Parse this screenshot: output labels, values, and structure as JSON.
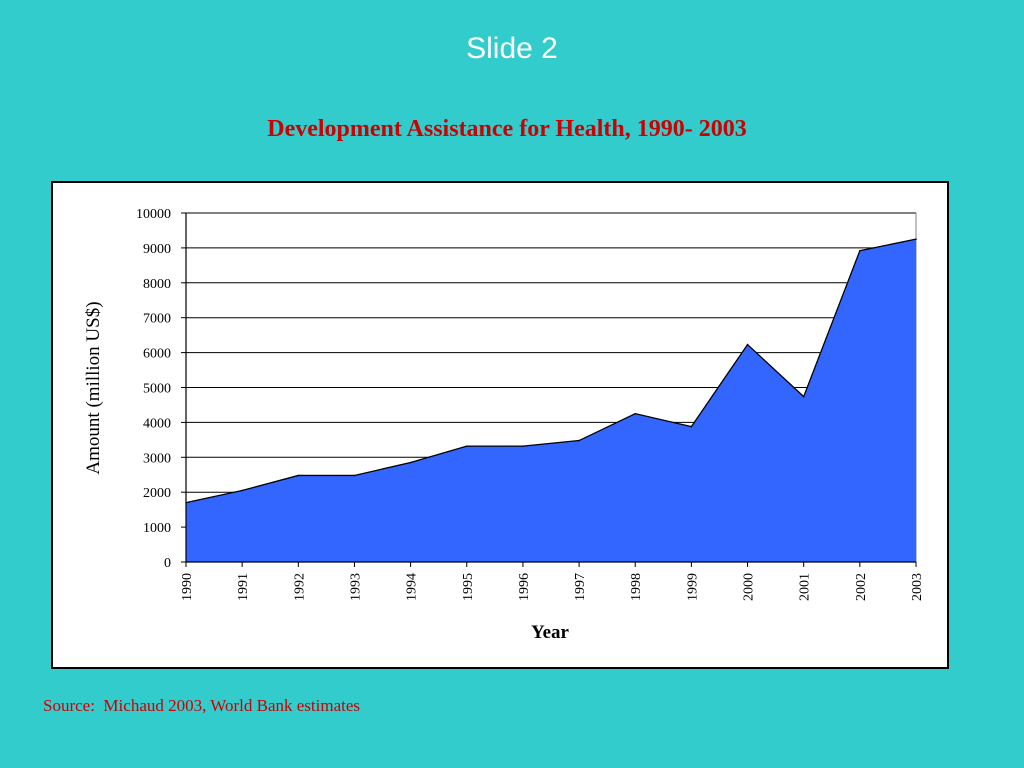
{
  "slide": {
    "title": "Slide 2",
    "source": "Source:  Michaud 2003, World Bank estimates"
  },
  "colors": {
    "background": "#33CCCC",
    "title_color": "#CC0000",
    "area_fill": "#3366FF",
    "area_stroke": "#000000"
  },
  "chart_data": {
    "type": "area",
    "title": "Development Assistance for Health, 1990- 2003",
    "xlabel": "Year",
    "ylabel": "Amount (million US$)",
    "ylim": [
      0,
      10000
    ],
    "yticks": [
      0,
      1000,
      2000,
      3000,
      4000,
      5000,
      6000,
      7000,
      8000,
      9000,
      10000
    ],
    "grid": true,
    "legend": "none",
    "categories": [
      "1990",
      "1991",
      "1992",
      "1993",
      "1994",
      "1995",
      "1996",
      "1997",
      "1998",
      "1999",
      "2000",
      "2001",
      "2002",
      "2003"
    ],
    "values": [
      1700,
      2050,
      2480,
      2480,
      2850,
      3320,
      3320,
      3480,
      4250,
      3880,
      6230,
      4740,
      8920,
      9250
    ]
  }
}
